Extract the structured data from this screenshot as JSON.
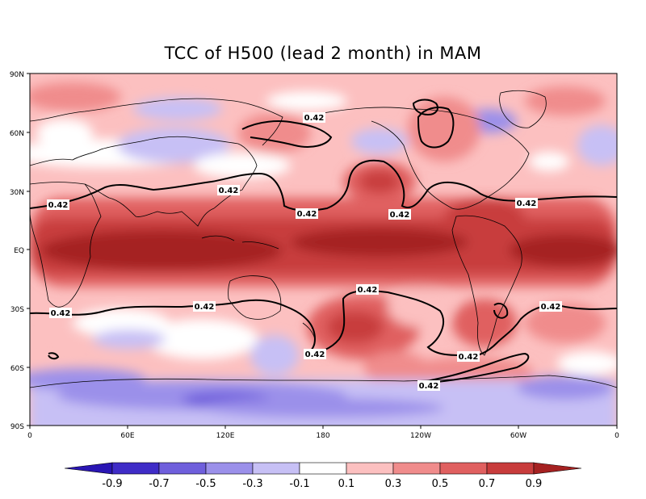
{
  "title": "TCC of H500 (lead 2 month) in MAM",
  "map": {
    "lat_labels": [
      "90N",
      "60N",
      "30N",
      "EQ",
      "30S",
      "60S",
      "90S"
    ],
    "lon_labels": [
      "0",
      "60E",
      "120E",
      "180",
      "120W",
      "60W",
      "0"
    ],
    "contour_level_label": "0.42",
    "colors": {
      "land_outline": "#000000",
      "contour": "#000000"
    }
  },
  "colorbar": {
    "labels": [
      "-0.9",
      "-0.7",
      "-0.5",
      "-0.3",
      "-0.1",
      "0.1",
      "0.3",
      "0.5",
      "0.7",
      "0.9"
    ],
    "colors": [
      "#2a16b4",
      "#3f2cc7",
      "#6f5fdc",
      "#9b90ea",
      "#c7c0f5",
      "#ffffff",
      "#fcc0c0",
      "#f08c8c",
      "#e06060",
      "#c83c3c",
      "#a52121"
    ]
  }
}
